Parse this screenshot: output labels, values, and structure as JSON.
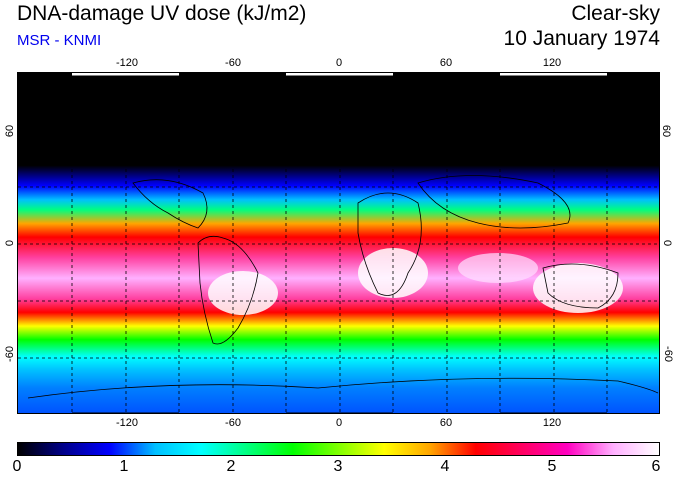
{
  "header": {
    "title": "DNA-damage UV dose (kJ/m2)",
    "subtitle": "MSR - KNMI",
    "condition": "Clear-sky",
    "date": "10 January 1974"
  },
  "colors": {
    "subtitle": "#0000ee",
    "scale": [
      "#000000",
      "#00008b",
      "#0000ff",
      "#00bfff",
      "#00ffff",
      "#00ff80",
      "#00ff00",
      "#80ff00",
      "#ffff00",
      "#ffa500",
      "#ff0000",
      "#ff0060",
      "#ff00c0",
      "#ffb0ff",
      "#ffffff"
    ]
  },
  "map": {
    "lon_ticks": [
      "-120",
      "-60",
      "0",
      "60",
      "120"
    ],
    "lat_ticks_left": [
      "60",
      "0",
      "-60"
    ],
    "lat_ticks_right": [
      "60",
      "0",
      "-60"
    ],
    "lon_range": [
      -180,
      180
    ],
    "lat_range": [
      -90,
      90
    ],
    "gridlines": "dashed every 30°"
  },
  "colorbar": {
    "labels": [
      "0",
      "1",
      "2",
      "3",
      "4",
      "5",
      "6"
    ],
    "range": [
      0,
      6
    ]
  }
}
